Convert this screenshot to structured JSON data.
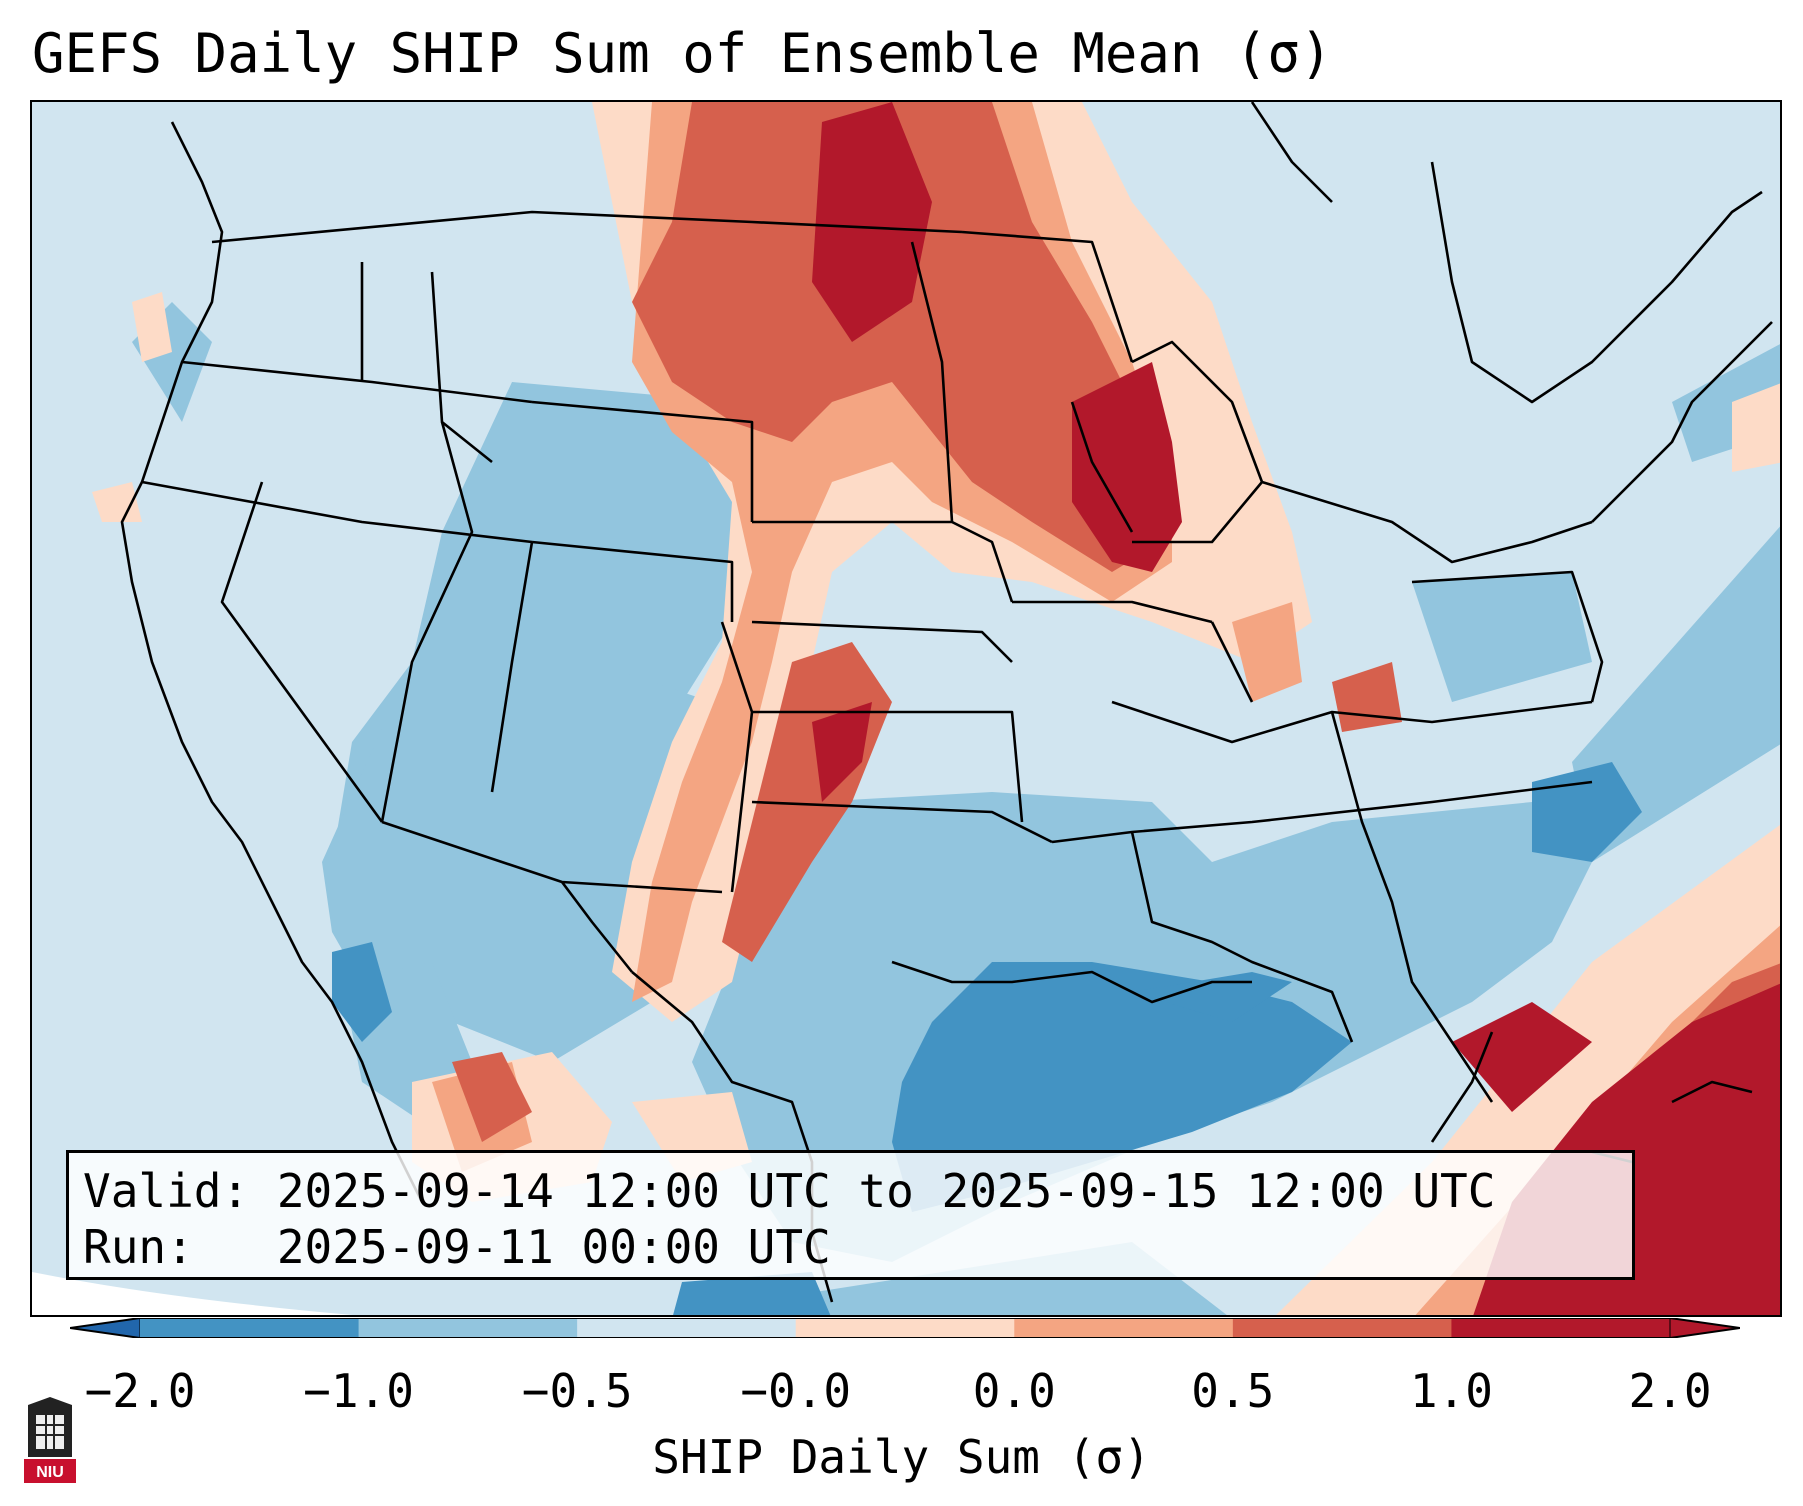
{
  "title": "GEFS Daily SHIP Sum of Ensemble Mean (σ)",
  "info": {
    "valid_line": "Valid: 2025-09-14 12:00 UTC to 2025-09-15 12:00 UTC",
    "run_line": "Run:   2025-09-11 00:00 UTC"
  },
  "colorbar": {
    "label": "SHIP Daily Sum (σ)",
    "ticks": [
      "−2.0",
      "−1.0",
      "−0.5",
      "−0.0",
      "0.0",
      "0.5",
      "1.0",
      "2.0"
    ],
    "bins": [
      {
        "color": "#4393c3"
      },
      {
        "color": "#92c5de"
      },
      {
        "color": "#d1e5f0"
      },
      {
        "color": "#fddbc7"
      },
      {
        "color": "#f4a582"
      },
      {
        "color": "#d6604d"
      },
      {
        "color": "#b2182b"
      }
    ],
    "under_color": "#2166ac",
    "over_color": "#b2182b"
  },
  "map": {
    "projection": "Lambert conformal, CONUS",
    "background_color": "#d1e5f0",
    "water_fill_color": "#d1e5f0"
  },
  "logo": {
    "text": "NIU"
  }
}
